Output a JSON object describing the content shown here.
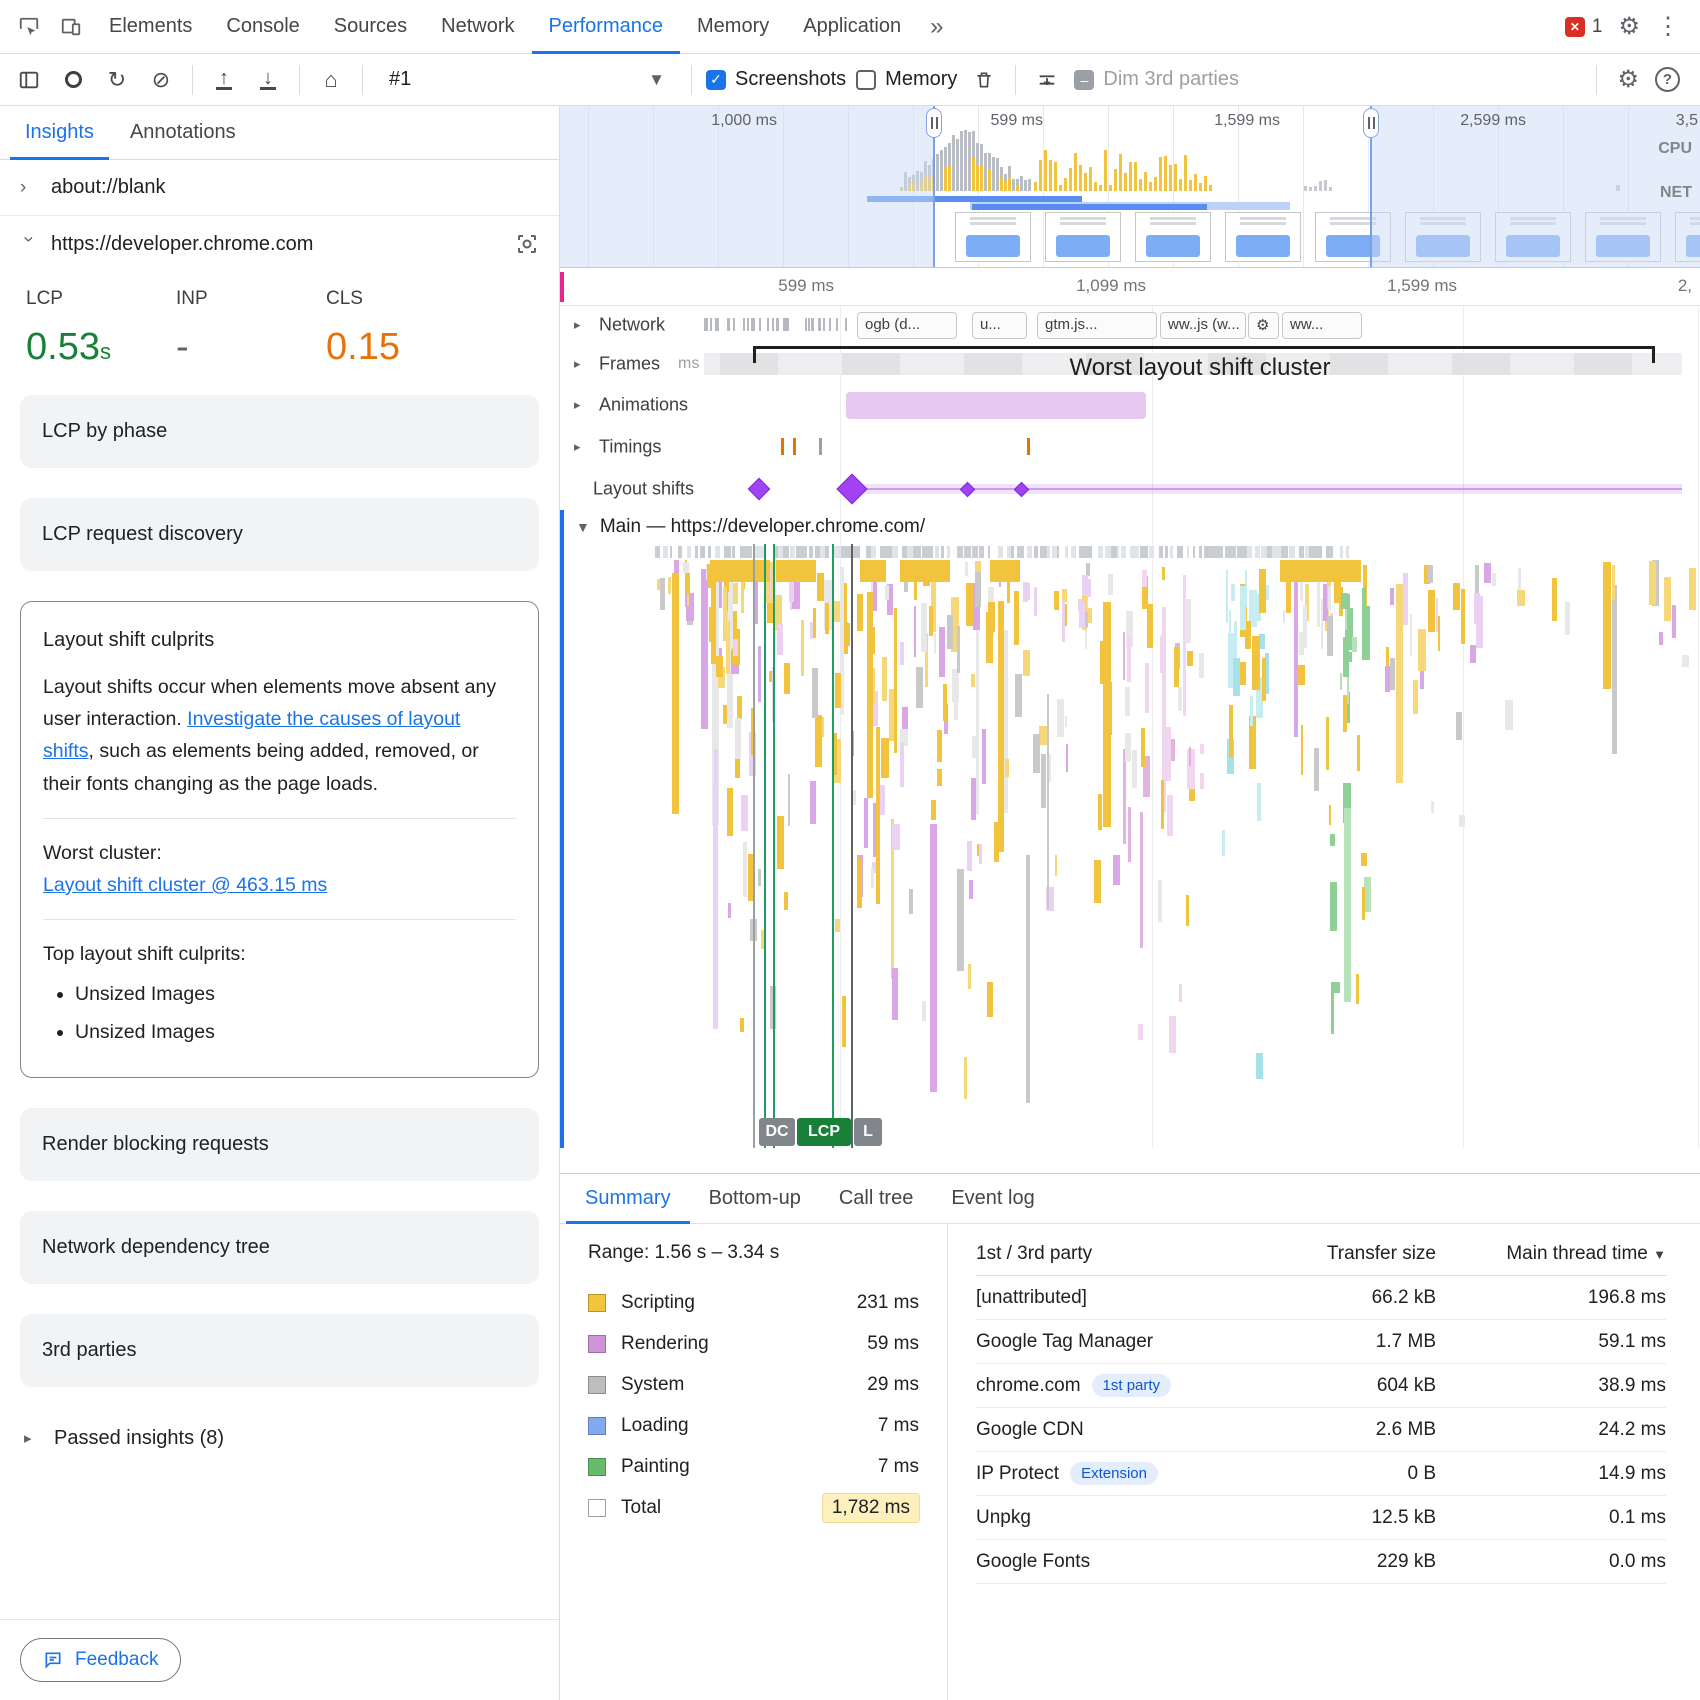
{
  "devtools": {
    "main_tabs": [
      "Elements",
      "Console",
      "Sources",
      "Network",
      "Performance",
      "Memory",
      "Application"
    ],
    "active_main_tab": "Performance",
    "overflow_chevron": "»",
    "error_badge_count": "1",
    "toolbar": {
      "profile_selector": "#1",
      "screenshots": "Screenshots",
      "memory": "Memory",
      "dim_3rd_parties": "Dim 3rd parties"
    }
  },
  "sidebar": {
    "tabs": [
      "Insights",
      "Annotations"
    ],
    "active_tab": "Insights",
    "trace_rows": [
      "about://blank",
      "https://developer.chrome.com"
    ],
    "metrics": [
      {
        "label": "LCP",
        "value": "0.53",
        "unit": "s",
        "color": "#188038"
      },
      {
        "label": "INP",
        "value": "-",
        "unit": "",
        "color": "#5f6368"
      },
      {
        "label": "CLS",
        "value": "0.15",
        "unit": "",
        "color": "#e8710a"
      }
    ],
    "insight_cards_top": [
      "LCP by phase",
      "LCP request discovery"
    ],
    "layout_shift_culprits": {
      "title": "Layout shift culprits",
      "body_pre": "Layout shifts occur when elements move absent any user interaction. ",
      "body_link": "Investigate the causes of layout shifts",
      "body_post": ", such as elements being added, removed, or their fonts changing as the page loads.",
      "worst_cluster_label": "Worst cluster:",
      "worst_cluster_link": "Layout shift cluster @ 463.15 ms",
      "top_culprits_label": "Top layout shift culprits:",
      "top_culprits": [
        "Unsized Images",
        "Unsized Images"
      ]
    },
    "insight_cards_bottom": [
      "Render blocking requests",
      "Network dependency tree",
      "3rd parties"
    ],
    "passed_insights": "Passed insights (8)",
    "feedback_button": "Feedback"
  },
  "overview": {
    "time_labels": [
      "1,000 ms",
      "599 ms",
      "1,599 ms",
      "2,599 ms",
      "3,5"
    ],
    "cpu_label": "CPU",
    "net_label": "NET"
  },
  "timeline": {
    "ruler_labels": [
      "599 ms",
      "1,099 ms",
      "1,599 ms",
      "2,"
    ],
    "network_track": "Network",
    "frames_track": "Frames",
    "frames_unit": "ms",
    "animations_track": "Animations",
    "timings_track": "Timings",
    "layout_shifts_track": "Layout shifts",
    "network_chips": [
      "ogb (d...",
      "u...",
      "gtm.js...",
      "ww..js (w...",
      "ww..."
    ],
    "cluster_annotation": "Worst layout shift cluster",
    "main_track": "Main — https://developer.chrome.com/",
    "marker_badges": [
      "DC",
      "LCP",
      "L"
    ]
  },
  "bottom_panel": {
    "tabs": [
      "Summary",
      "Bottom-up",
      "Call tree",
      "Event log"
    ],
    "active_tab": "Summary",
    "range": "Range: 1.56 s – 3.34 s",
    "legend": [
      {
        "label": "Scripting",
        "value": "231 ms",
        "color": "#f3c53d"
      },
      {
        "label": "Rendering",
        "value": "59 ms",
        "color": "#ce93d8"
      },
      {
        "label": "System",
        "value": "29 ms",
        "color": "#bdbdbd"
      },
      {
        "label": "Loading",
        "value": "7 ms",
        "color": "#82aaf0"
      },
      {
        "label": "Painting",
        "value": "7 ms",
        "color": "#67bb6a"
      }
    ],
    "total": {
      "label": "Total",
      "value": "1,782 ms"
    },
    "party_table": {
      "headers": [
        "1st / 3rd party",
        "Transfer size",
        "Main thread time"
      ],
      "sort_column": "Main thread time",
      "rows": [
        {
          "name": "[unattributed]",
          "badge": "",
          "transfer_size": "66.2 kB",
          "main_thread_time": "196.8 ms"
        },
        {
          "name": "Google Tag Manager",
          "badge": "",
          "transfer_size": "1.7 MB",
          "main_thread_time": "59.1 ms"
        },
        {
          "name": "chrome.com",
          "badge": "1st party",
          "transfer_size": "604 kB",
          "main_thread_time": "38.9 ms"
        },
        {
          "name": "Google CDN",
          "badge": "",
          "transfer_size": "2.6 MB",
          "main_thread_time": "24.2 ms"
        },
        {
          "name": "IP Protect",
          "badge": "Extension",
          "transfer_size": "0 B",
          "main_thread_time": "14.9 ms"
        },
        {
          "name": "Unpkg",
          "badge": "",
          "transfer_size": "12.5 kB",
          "main_thread_time": "0.1 ms"
        },
        {
          "name": "Google Fonts",
          "badge": "",
          "transfer_size": "229 kB",
          "main_thread_time": "0.0 ms"
        }
      ]
    }
  }
}
